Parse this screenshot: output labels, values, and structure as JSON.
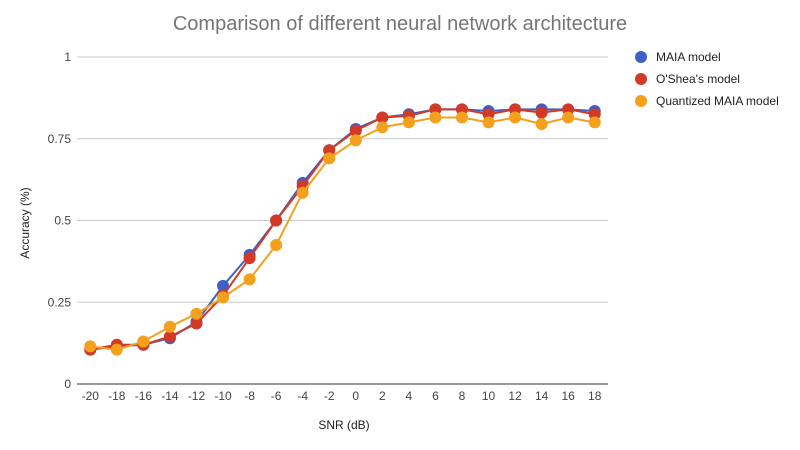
{
  "chart_data": {
    "type": "line",
    "title": "Comparison of different neural network architecture",
    "xlabel": "SNR (dB)",
    "ylabel": "Accuracy (%)",
    "x": [
      -20,
      -18,
      -16,
      -14,
      -12,
      -10,
      -8,
      -6,
      -4,
      -2,
      0,
      2,
      4,
      6,
      8,
      10,
      12,
      14,
      16,
      18
    ],
    "x_tick_labels": [
      "-20",
      "-18",
      "-16",
      "-14",
      "-12",
      "-10",
      "-8",
      "-6",
      "-4",
      "-2",
      "0",
      "2",
      "4",
      "6",
      "8",
      "10",
      "12",
      "14",
      "16",
      "18"
    ],
    "y_ticks": [
      0,
      0.25,
      0.5,
      0.75,
      1
    ],
    "y_tick_labels": [
      "0",
      "0.25",
      "0.5",
      "0.75",
      "1"
    ],
    "ylim": [
      0,
      1
    ],
    "grid": "horizontal",
    "legend_position": "right",
    "series": [
      {
        "name": "MAIA model",
        "color": "#3f5fc8",
        "values": [
          0.105,
          0.115,
          0.12,
          0.14,
          0.19,
          0.3,
          0.395,
          0.5,
          0.615,
          0.715,
          0.78,
          0.815,
          0.825,
          0.84,
          0.84,
          0.835,
          0.84,
          0.84,
          0.84,
          0.835
        ]
      },
      {
        "name": "O'Shea's model",
        "color": "#d23a25",
        "values": [
          0.105,
          0.12,
          0.12,
          0.145,
          0.185,
          0.27,
          0.385,
          0.5,
          0.605,
          0.715,
          0.775,
          0.815,
          0.82,
          0.84,
          0.84,
          0.825,
          0.84,
          0.83,
          0.84,
          0.825
        ]
      },
      {
        "name": "Quantized MAIA model",
        "color": "#f5a01c",
        "values": [
          0.115,
          0.105,
          0.13,
          0.175,
          0.215,
          0.265,
          0.32,
          0.425,
          0.585,
          0.69,
          0.745,
          0.785,
          0.8,
          0.815,
          0.815,
          0.8,
          0.815,
          0.795,
          0.815,
          0.8
        ]
      }
    ]
  }
}
